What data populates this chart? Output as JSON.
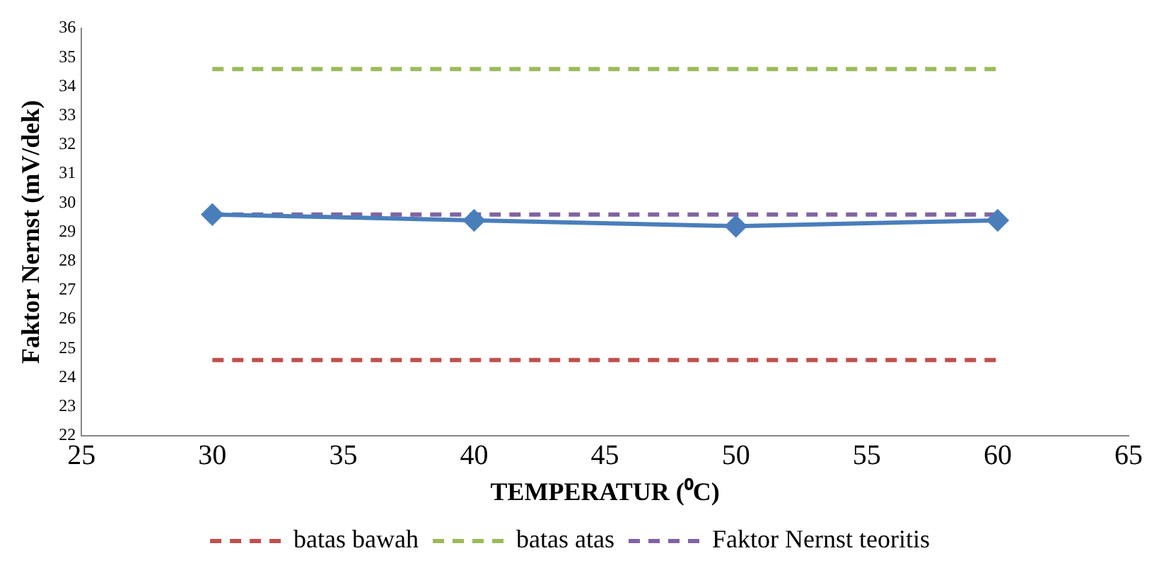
{
  "chart_data": {
    "type": "line",
    "xlabel": "TEMPERATUR (⁰C)",
    "ylabel": "Faktor Nernst (mV/dek)",
    "x": [
      30,
      40,
      50,
      60
    ],
    "series": [
      {
        "color": "#4a7ebb",
        "values": [
          29.6,
          29.4,
          29.2,
          29.4
        ],
        "marker": "diamond",
        "line_style": "solid"
      },
      {
        "name": "batas bawah",
        "color": "#c0504d",
        "values": [
          24.6,
          24.6,
          24.6,
          24.6
        ],
        "marker": "none",
        "line_style": "dashed"
      },
      {
        "name": "batas atas",
        "color": "#9bbb59",
        "values": [
          34.6,
          34.6,
          34.6,
          34.6
        ],
        "marker": "none",
        "line_style": "dashed"
      },
      {
        "name": "Faktor Nernst teoritis",
        "color": "#8064a2",
        "values": [
          29.6,
          29.6,
          29.6,
          29.6
        ],
        "marker": "none",
        "line_style": "dashed"
      }
    ],
    "xlim": [
      25,
      65
    ],
    "xticks": [
      25,
      30,
      35,
      40,
      45,
      50,
      55,
      60,
      65
    ],
    "ylim": [
      22,
      36
    ],
    "yticks": [
      22,
      23,
      24,
      25,
      26,
      27,
      28,
      29,
      30,
      31,
      32,
      33,
      34,
      35,
      36
    ],
    "grid": false,
    "legend": "bottom"
  }
}
